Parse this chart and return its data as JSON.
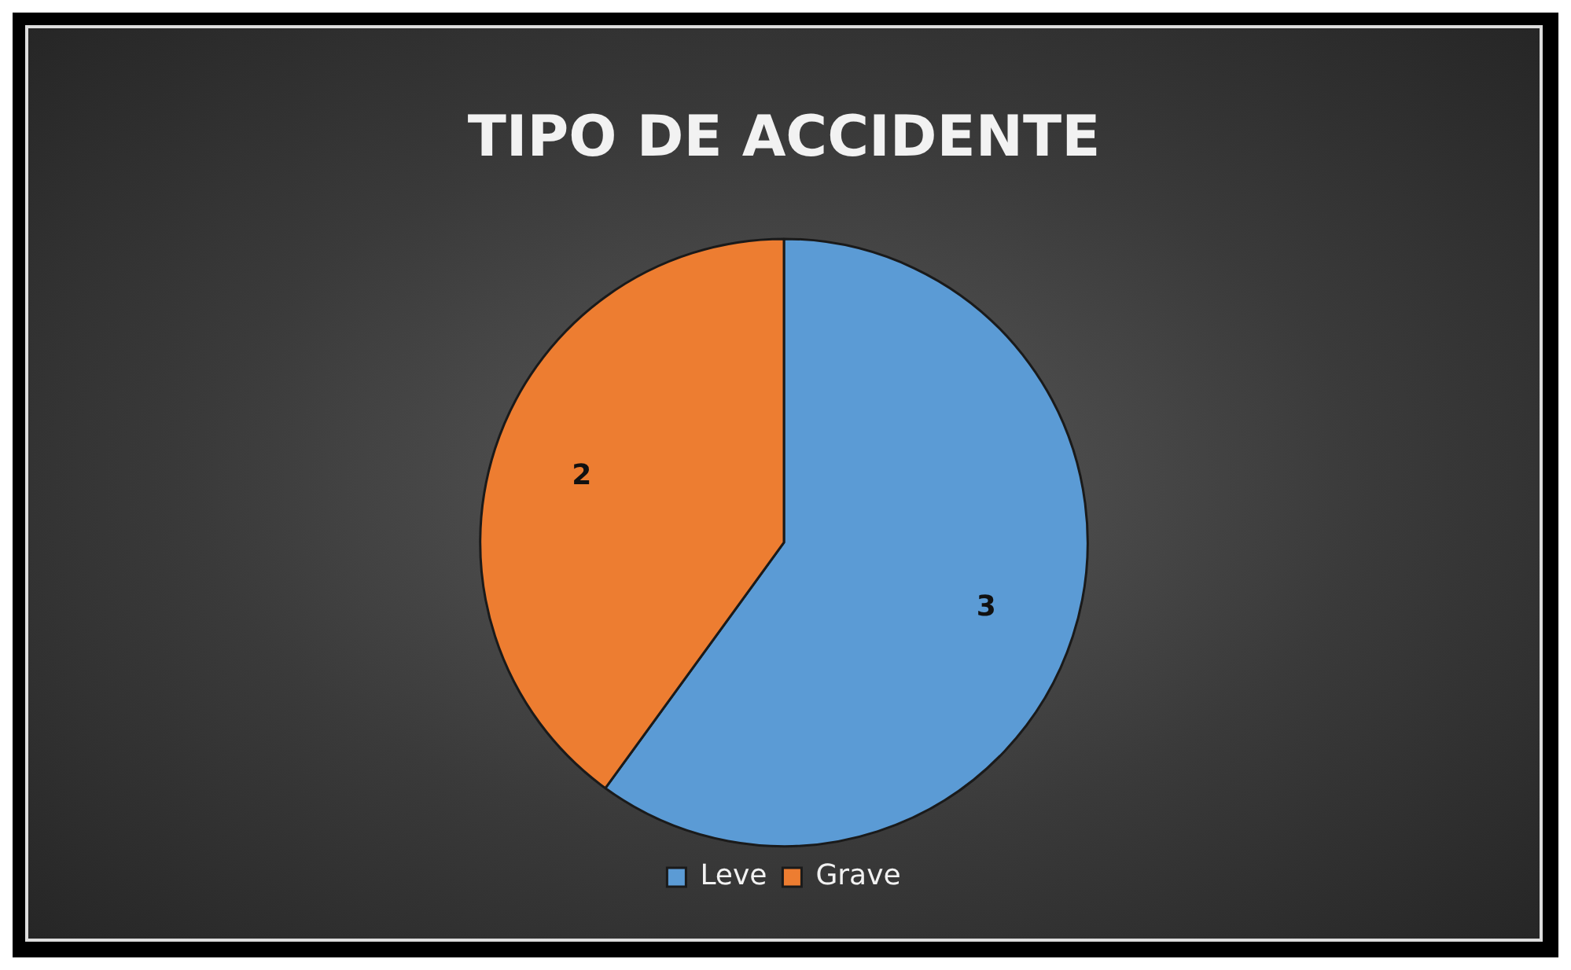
{
  "chart_data": {
    "type": "pie",
    "title": "TIPO DE ACCIDENTE",
    "categories": [
      "Leve",
      "Grave"
    ],
    "values": [
      3,
      2
    ],
    "colors": [
      "#5b9bd5",
      "#ed7d31"
    ],
    "data_labels": true,
    "legend": "bottom"
  }
}
